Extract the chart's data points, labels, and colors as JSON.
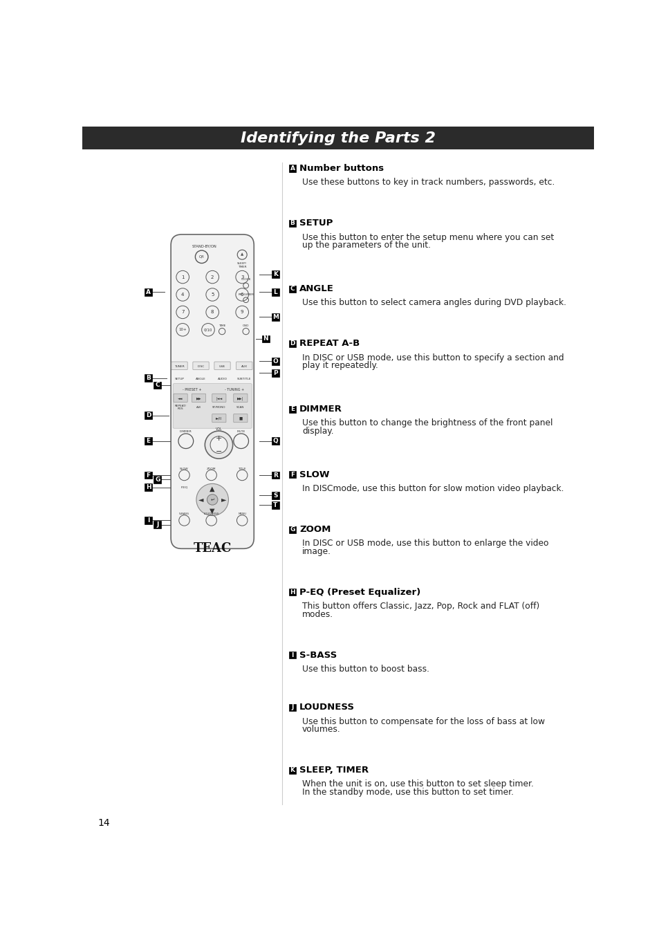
{
  "title": "Identifying the Parts 2",
  "title_bg": "#2b2b2b",
  "title_color": "#ffffff",
  "page_number": "14",
  "bg_color": "#ffffff",
  "sections": [
    {
      "label": "A",
      "heading": "Number buttons",
      "body": "Use these buttons to key in track numbers, passwords, etc."
    },
    {
      "label": "B",
      "heading": "SETUP",
      "body": "Use this button to enter the setup menu where you can set\nup the parameters of the unit."
    },
    {
      "label": "C",
      "heading": "ANGLE",
      "body": "Use this button to select camera angles during DVD playback."
    },
    {
      "label": "D",
      "heading": "REPEAT A-B",
      "body": "In DISC or USB mode, use this button to specify a section and\nplay it repeatedly."
    },
    {
      "label": "E",
      "heading": "DIMMER",
      "body": "Use this button to change the brightness of the front panel\ndisplay."
    },
    {
      "label": "F",
      "heading": "SLOW",
      "body": "In DISCmode, use this button for slow motion video playback."
    },
    {
      "label": "G",
      "heading": "ZOOM",
      "body": "In DISC or USB mode, use this button to enlarge the video\nimage."
    },
    {
      "label": "H",
      "heading": "P-EQ (Preset Equalizer)",
      "body": "This button offers Classic, Jazz, Pop, Rock and FLAT (off)\nmodes."
    },
    {
      "label": "I",
      "heading": "S-BASS",
      "body": "Use this button to boost bass."
    },
    {
      "label": "J",
      "heading": "LOUDNESS",
      "body": "Use this button to compensate for the loss of bass at low\nvolumes."
    },
    {
      "label": "K",
      "heading": "SLEEP, TIMER",
      "body": "When the unit is on, use this button to set sleep timer.\nIn the standby mode, use this button to set timer."
    }
  ]
}
